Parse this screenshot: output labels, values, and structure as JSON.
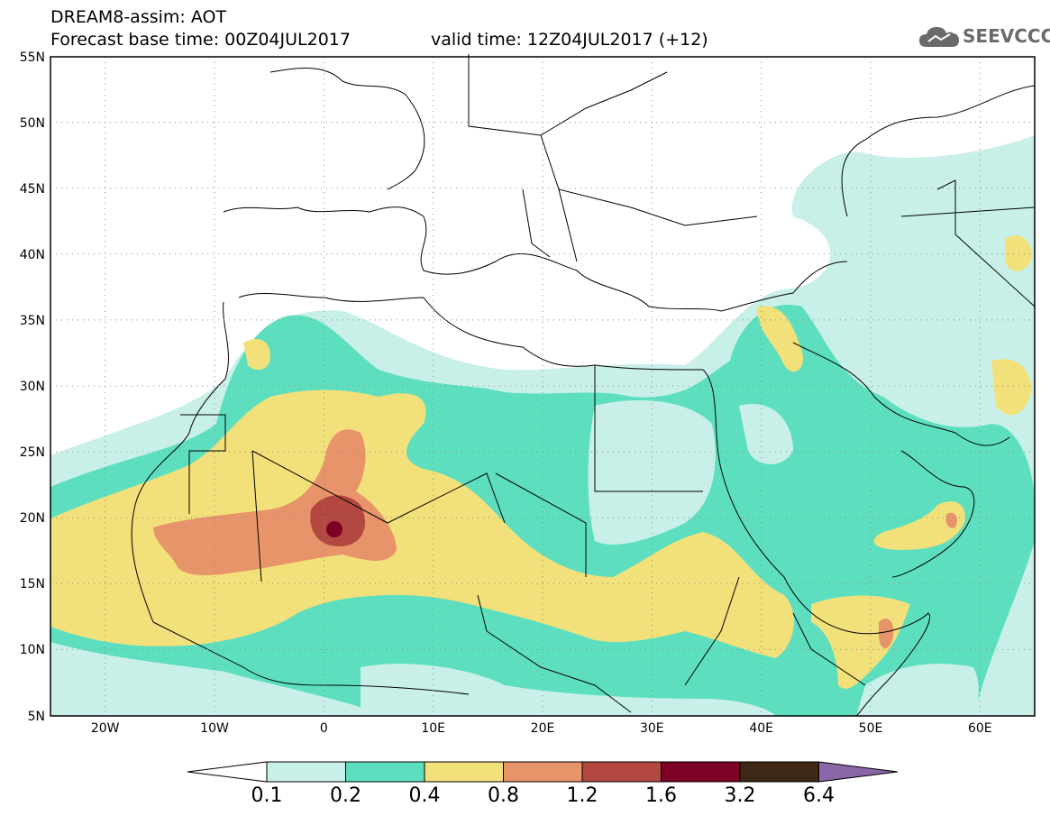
{
  "title": {
    "line1": "DREAM8-assim: AOT",
    "line2a": "Forecast base time: 00Z04JUL2017",
    "line2b": "valid time: 12Z04JUL2017 (+12)"
  },
  "logo": {
    "text": "SEEVCCC",
    "icon": "cloud-icon"
  },
  "map": {
    "lat_labels": [
      "55N",
      "50N",
      "45N",
      "40N",
      "35N",
      "30N",
      "25N",
      "20N",
      "15N",
      "10N",
      "5N"
    ],
    "lon_labels": [
      "20W",
      "10W",
      "0",
      "10E",
      "20E",
      "30E",
      "40E",
      "50E",
      "60E"
    ],
    "lon_range": [
      -25,
      65
    ],
    "lat_range": [
      5,
      55
    ],
    "field": "Aerosol optical thickness (AOT)"
  },
  "colorbar": {
    "labels": [
      "0.1",
      "0.2",
      "0.4",
      "0.8",
      "1.2",
      "1.6",
      "3.2",
      "6.4"
    ],
    "colors": {
      "under": "#ffffff",
      "c1": "#c8f0e8",
      "c2": "#5ddfbf",
      "c3": "#f2e07a",
      "c4": "#e8946a",
      "c5": "#b2483f",
      "c6": "#7d0026",
      "c7": "#3d2716",
      "over": "#8a67a8"
    }
  }
}
